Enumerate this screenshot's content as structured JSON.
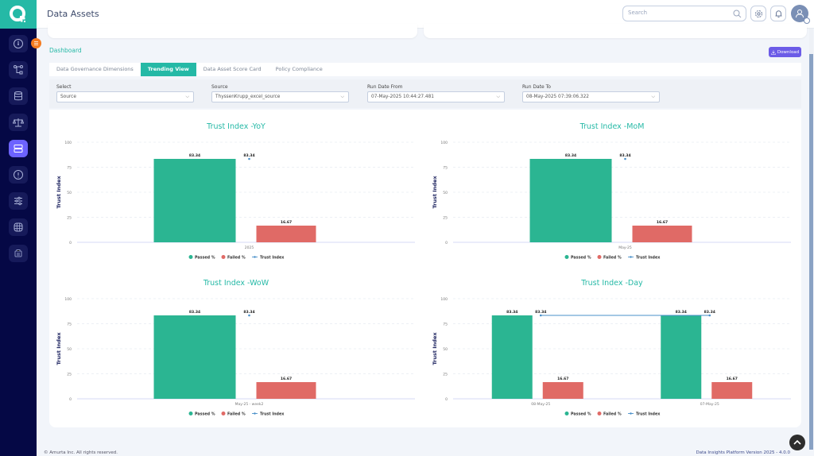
{
  "app": {
    "title": "Data Assets"
  },
  "header": {
    "search_placeholder": "Search",
    "icons": [
      "settings-icon",
      "bell-icon",
      "user-avatar-icon"
    ]
  },
  "sidebar": {
    "items": [
      {
        "icon": "gauge-icon",
        "active": false
      },
      {
        "icon": "workflow-icon",
        "active": false
      },
      {
        "icon": "database-icon",
        "active": false
      },
      {
        "icon": "scale-icon",
        "active": false
      },
      {
        "icon": "server-icon",
        "active": true
      },
      {
        "icon": "alert-icon",
        "active": false
      },
      {
        "icon": "sliders-icon",
        "active": false
      },
      {
        "icon": "grid-globe-icon",
        "active": false
      },
      {
        "icon": "stats-icon",
        "active": false
      }
    ]
  },
  "breadcrumb": {
    "label": "Dashboard"
  },
  "toolbar": {
    "download_label": "Download"
  },
  "tabs": [
    {
      "label": "Data Governance Dimensions",
      "active": false
    },
    {
      "label": "Trending View",
      "active": true
    },
    {
      "label": "Data Asset Score Card",
      "active": false
    },
    {
      "label": "Policy Compliance",
      "active": false
    }
  ],
  "filters": [
    {
      "label": "Select",
      "value": "Source"
    },
    {
      "label": "Source",
      "value": "ThyssenKrupp_excel_source"
    },
    {
      "label": "Run Date From",
      "value": "07-May-2025 10:44:27.481"
    },
    {
      "label": "Run Date To",
      "value": "08-May-2025 07:39:06.322"
    }
  ],
  "colors": {
    "passed": "#2bb592",
    "failed": "#e06a66",
    "trust": "#4a90c9",
    "accent": "#25b9a6",
    "download": "#6c5ce7"
  },
  "chart_data": [
    {
      "type": "bar",
      "title": "Trust Index -YoY",
      "ylabel": "Trust Index",
      "ylim": [
        0,
        100
      ],
      "yticks": [
        "0",
        "25",
        "50",
        "75",
        "100"
      ],
      "categories": [
        "2025"
      ],
      "series": [
        {
          "name": "Passed %",
          "values": [
            83.34
          ],
          "labels": [
            "83.34"
          ]
        },
        {
          "name": "Failed %",
          "values": [
            16.67
          ],
          "labels": [
            "16.67"
          ]
        },
        {
          "name": "Trust Index",
          "kind": "line",
          "values": [
            83.34
          ],
          "labels": [
            "83.34"
          ]
        }
      ],
      "legend": "bottom"
    },
    {
      "type": "bar",
      "title": "Trust Index -MoM",
      "ylabel": "Trust Index",
      "ylim": [
        0,
        100
      ],
      "yticks": [
        "0",
        "25",
        "50",
        "75",
        "100"
      ],
      "categories": [
        "May-25"
      ],
      "series": [
        {
          "name": "Passed %",
          "values": [
            83.34
          ],
          "labels": [
            "83.34"
          ]
        },
        {
          "name": "Failed %",
          "values": [
            16.67
          ],
          "labels": [
            "16.67"
          ]
        },
        {
          "name": "Trust Index",
          "kind": "line",
          "values": [
            83.34
          ],
          "labels": [
            "83.34"
          ]
        }
      ],
      "legend": "bottom"
    },
    {
      "type": "bar",
      "title": "Trust Index -WoW",
      "ylabel": "Trust Index",
      "ylim": [
        0,
        100
      ],
      "yticks": [
        "0",
        "25",
        "50",
        "75",
        "100"
      ],
      "categories": [
        "May-25 - week2"
      ],
      "series": [
        {
          "name": "Passed %",
          "values": [
            83.34
          ],
          "labels": [
            "83.34"
          ]
        },
        {
          "name": "Failed %",
          "values": [
            16.67
          ],
          "labels": [
            "16.67"
          ]
        },
        {
          "name": "Trust Index",
          "kind": "line",
          "values": [
            83.34
          ],
          "labels": [
            "83.34"
          ]
        }
      ],
      "legend": "bottom"
    },
    {
      "type": "bar",
      "title": "Trust Index -Day",
      "ylabel": "Trust Index",
      "ylim": [
        0,
        100
      ],
      "yticks": [
        "0",
        "25",
        "50",
        "75",
        "100"
      ],
      "categories": [
        "08-May-25",
        "07-May-25"
      ],
      "series": [
        {
          "name": "Passed %",
          "values": [
            83.34,
            83.34
          ],
          "labels": [
            "83.34",
            "83.34"
          ]
        },
        {
          "name": "Failed %",
          "values": [
            16.67,
            16.67
          ],
          "labels": [
            "16.67",
            "16.67"
          ]
        },
        {
          "name": "Trust Index",
          "kind": "line",
          "values": [
            83.34,
            83.34
          ],
          "labels": [
            "83.34",
            "83.34"
          ]
        }
      ],
      "legend": "bottom"
    }
  ],
  "footer": {
    "copyright": "© Amurta Inc. All rights reserved.",
    "version": "Data Insights Platform Version 2025 - 4.0.0"
  }
}
